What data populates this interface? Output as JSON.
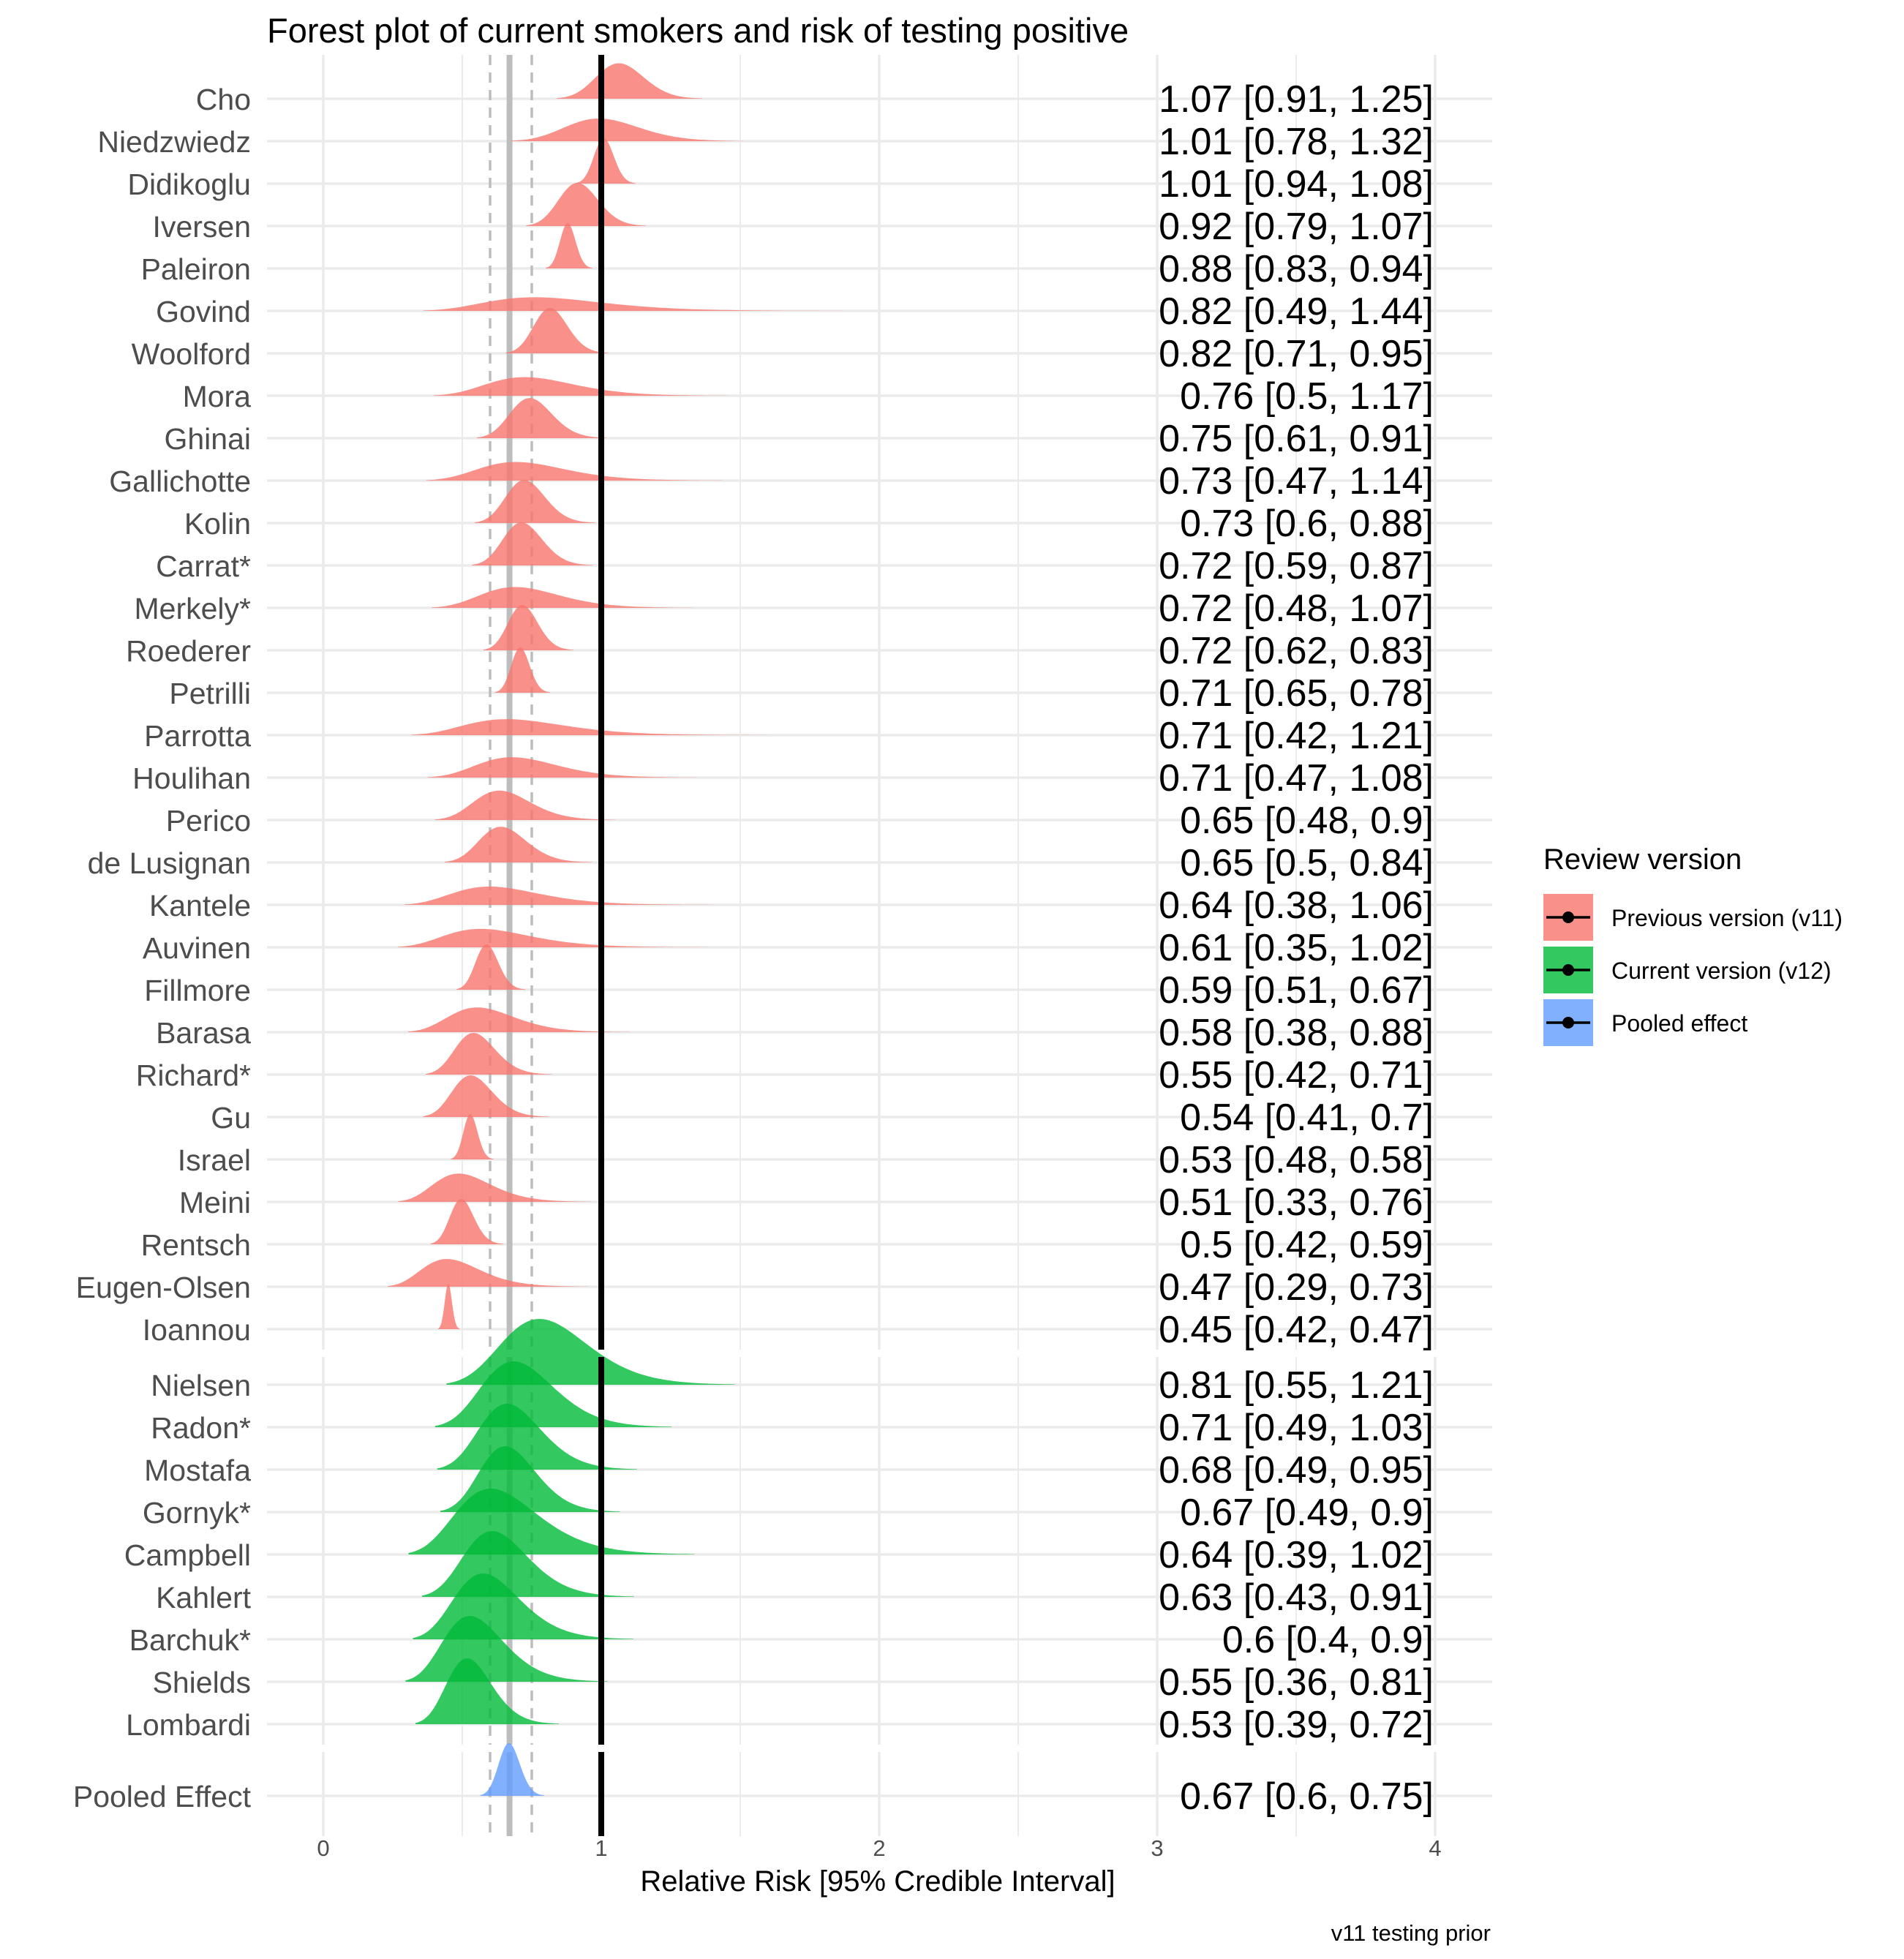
{
  "chart_data": {
    "type": "forest (ridge density)",
    "title": "Forest plot of current smokers and risk of testing positive",
    "xlabel": "Relative Risk [95% Credible Interval]",
    "xlim": [
      -0.2,
      4.2
    ],
    "xticks": [
      0,
      1,
      2,
      3,
      4
    ],
    "grid": true,
    "caption": "v11 testing prior",
    "reference_line": 1,
    "pooled_line": {
      "estimate": 0.67,
      "lower": 0.6,
      "upper": 0.75
    },
    "legend": {
      "title": "Review version",
      "position": "right",
      "entries": [
        {
          "label": "Previous version (v11)",
          "color": "#f8766d"
        },
        {
          "label": "Current version (v12)",
          "color": "#00ba38"
        },
        {
          "label": "Pooled effect",
          "color": "#619cff"
        }
      ]
    },
    "panels": [
      {
        "group": "Previous version (v11)",
        "studies": [
          {
            "name": "Cho",
            "estimate": 1.07,
            "lower": 0.91,
            "upper": 1.25,
            "label": "1.07 [0.91, 1.25]"
          },
          {
            "name": "Niedzwiedz",
            "estimate": 1.01,
            "lower": 0.78,
            "upper": 1.32,
            "label": "1.01 [0.78, 1.32]"
          },
          {
            "name": "Didikoglu",
            "estimate": 1.01,
            "lower": 0.94,
            "upper": 1.08,
            "label": "1.01 [0.94, 1.08]"
          },
          {
            "name": "Iversen",
            "estimate": 0.92,
            "lower": 0.79,
            "upper": 1.07,
            "label": "0.92 [0.79, 1.07]"
          },
          {
            "name": "Paleiron",
            "estimate": 0.88,
            "lower": 0.83,
            "upper": 0.94,
            "label": "0.88 [0.83, 0.94]"
          },
          {
            "name": "Govind",
            "estimate": 0.82,
            "lower": 0.49,
            "upper": 1.44,
            "label": "0.82 [0.49, 1.44]"
          },
          {
            "name": "Woolford",
            "estimate": 0.82,
            "lower": 0.71,
            "upper": 0.95,
            "label": "0.82 [0.71, 0.95]"
          },
          {
            "name": "Mora",
            "estimate": 0.76,
            "lower": 0.5,
            "upper": 1.17,
            "label": "0.76 [0.5, 1.17]"
          },
          {
            "name": "Ghinai",
            "estimate": 0.75,
            "lower": 0.61,
            "upper": 0.91,
            "label": "0.75 [0.61, 0.91]"
          },
          {
            "name": "Gallichotte",
            "estimate": 0.73,
            "lower": 0.47,
            "upper": 1.14,
            "label": "0.73 [0.47, 1.14]"
          },
          {
            "name": "Kolin",
            "estimate": 0.73,
            "lower": 0.6,
            "upper": 0.88,
            "label": "0.73 [0.6, 0.88]"
          },
          {
            "name": "Carrat*",
            "estimate": 0.72,
            "lower": 0.59,
            "upper": 0.87,
            "label": "0.72 [0.59, 0.87]"
          },
          {
            "name": "Merkely*",
            "estimate": 0.72,
            "lower": 0.48,
            "upper": 1.07,
            "label": "0.72 [0.48, 1.07]"
          },
          {
            "name": "Roederer",
            "estimate": 0.72,
            "lower": 0.62,
            "upper": 0.83,
            "label": "0.72 [0.62, 0.83]"
          },
          {
            "name": "Petrilli",
            "estimate": 0.71,
            "lower": 0.65,
            "upper": 0.78,
            "label": "0.71 [0.65, 0.78]"
          },
          {
            "name": "Parrotta",
            "estimate": 0.71,
            "lower": 0.42,
            "upper": 1.21,
            "label": "0.71 [0.42, 1.21]"
          },
          {
            "name": "Houlihan",
            "estimate": 0.71,
            "lower": 0.47,
            "upper": 1.08,
            "label": "0.71 [0.47, 1.08]"
          },
          {
            "name": "Perico",
            "estimate": 0.65,
            "lower": 0.48,
            "upper": 0.9,
            "label": "0.65 [0.48, 0.9]"
          },
          {
            "name": "de Lusignan",
            "estimate": 0.65,
            "lower": 0.5,
            "upper": 0.84,
            "label": "0.65 [0.5, 0.84]"
          },
          {
            "name": "Kantele",
            "estimate": 0.64,
            "lower": 0.38,
            "upper": 1.06,
            "label": "0.64 [0.38, 1.06]"
          },
          {
            "name": "Auvinen",
            "estimate": 0.61,
            "lower": 0.35,
            "upper": 1.02,
            "label": "0.61 [0.35, 1.02]"
          },
          {
            "name": "Fillmore",
            "estimate": 0.59,
            "lower": 0.51,
            "upper": 0.67,
            "label": "0.59 [0.51, 0.67]"
          },
          {
            "name": "Barasa",
            "estimate": 0.58,
            "lower": 0.38,
            "upper": 0.88,
            "label": "0.58 [0.38, 0.88]"
          },
          {
            "name": "Richard*",
            "estimate": 0.55,
            "lower": 0.42,
            "upper": 0.71,
            "label": "0.55 [0.42, 0.71]"
          },
          {
            "name": "Gu",
            "estimate": 0.54,
            "lower": 0.41,
            "upper": 0.7,
            "label": "0.54 [0.41, 0.7]"
          },
          {
            "name": "Israel",
            "estimate": 0.53,
            "lower": 0.48,
            "upper": 0.58,
            "label": "0.53 [0.48, 0.58]"
          },
          {
            "name": "Meini",
            "estimate": 0.51,
            "lower": 0.33,
            "upper": 0.76,
            "label": "0.51 [0.33, 0.76]"
          },
          {
            "name": "Rentsch",
            "estimate": 0.5,
            "lower": 0.42,
            "upper": 0.59,
            "label": "0.5 [0.42, 0.59]"
          },
          {
            "name": "Eugen-Olsen",
            "estimate": 0.47,
            "lower": 0.29,
            "upper": 0.73,
            "label": "0.47 [0.29, 0.73]"
          },
          {
            "name": "Ioannou",
            "estimate": 0.45,
            "lower": 0.42,
            "upper": 0.47,
            "label": "0.45 [0.42, 0.47]"
          }
        ]
      },
      {
        "group": "Current version (v12)",
        "studies": [
          {
            "name": "Nielsen",
            "estimate": 0.81,
            "lower": 0.55,
            "upper": 1.21,
            "label": "0.81 [0.55, 1.21]"
          },
          {
            "name": "Radon*",
            "estimate": 0.71,
            "lower": 0.49,
            "upper": 1.03,
            "label": "0.71 [0.49, 1.03]"
          },
          {
            "name": "Mostafa",
            "estimate": 0.68,
            "lower": 0.49,
            "upper": 0.95,
            "label": "0.68 [0.49, 0.95]"
          },
          {
            "name": "Gornyk*",
            "estimate": 0.67,
            "lower": 0.49,
            "upper": 0.9,
            "label": "0.67 [0.49, 0.9]"
          },
          {
            "name": "Campbell",
            "estimate": 0.64,
            "lower": 0.39,
            "upper": 1.02,
            "label": "0.64 [0.39, 1.02]"
          },
          {
            "name": "Kahlert",
            "estimate": 0.63,
            "lower": 0.43,
            "upper": 0.91,
            "label": "0.63 [0.43, 0.91]"
          },
          {
            "name": "Barchuk*",
            "estimate": 0.6,
            "lower": 0.4,
            "upper": 0.9,
            "label": "0.6 [0.4, 0.9]"
          },
          {
            "name": "Shields",
            "estimate": 0.55,
            "lower": 0.36,
            "upper": 0.81,
            "label": "0.55 [0.36, 0.81]"
          },
          {
            "name": "Lombardi",
            "estimate": 0.53,
            "lower": 0.39,
            "upper": 0.72,
            "label": "0.53 [0.39, 0.72]"
          }
        ]
      },
      {
        "group": "Pooled effect",
        "studies": [
          {
            "name": "Pooled Effect",
            "estimate": 0.67,
            "lower": 0.6,
            "upper": 0.75,
            "label": "0.67 [0.6, 0.75]"
          }
        ]
      }
    ]
  }
}
